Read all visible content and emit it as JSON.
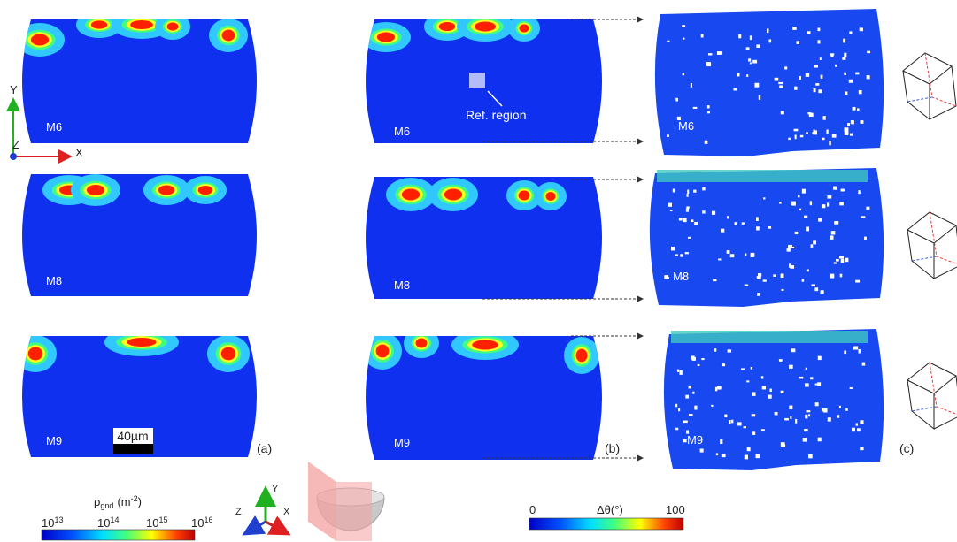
{
  "panels": [
    {
      "label": "(a)",
      "maps": [
        "M6",
        "M8",
        "M9"
      ],
      "scale_bar": "40µm",
      "triad": {
        "x": "X",
        "y": "Y",
        "z": "Z"
      }
    },
    {
      "label": "(b)",
      "maps": [
        "M6",
        "M8",
        "M9"
      ],
      "ref_region": "Ref. region"
    },
    {
      "label": "(c)",
      "maps": [
        "M6",
        "M8",
        "M9"
      ]
    }
  ],
  "colorbar_gnd": {
    "symbol": "ρ",
    "subscript": "gnd",
    "unit": "(m",
    "unit_exponent": "-2",
    "unit_close": ")",
    "ticks": [
      {
        "base": "10",
        "exponent": "13"
      },
      {
        "base": "10",
        "exponent": "14"
      },
      {
        "base": "10",
        "exponent": "15"
      },
      {
        "base": "10",
        "exponent": "16"
      }
    ]
  },
  "triad": {
    "x": "X",
    "y": "Y",
    "z": "Z"
  },
  "colorbar_misorientation": {
    "title": "Δθ(°)",
    "min": 0,
    "max": 100
  }
}
